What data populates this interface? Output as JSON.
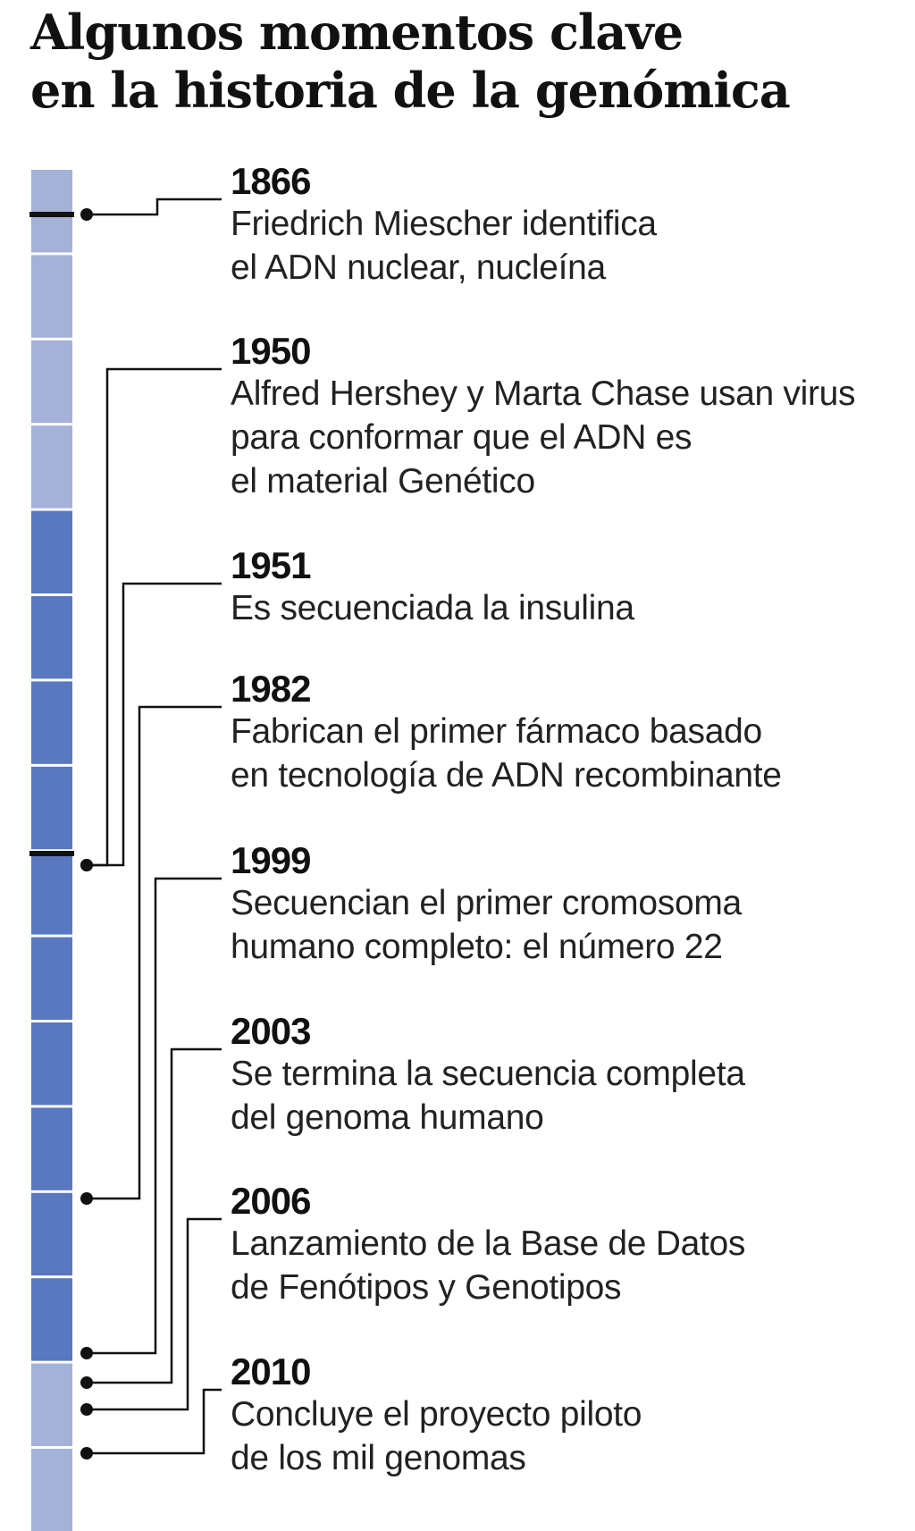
{
  "title": {
    "line1": "Algunos momentos clave",
    "line2": "en la historia de la genómica"
  },
  "colors": {
    "segment_light": "#a4b2d8",
    "segment_dark": "#5a78bf",
    "connector": "#111111",
    "text": "#222222"
  },
  "bar_segments": [
    "light",
    "light",
    "light",
    "light",
    "dark",
    "dark",
    "dark",
    "dark",
    "dark",
    "dark",
    "dark",
    "dark",
    "dark",
    "dark",
    "light",
    "light"
  ],
  "events": [
    {
      "year": "1866",
      "lines": [
        "Friedrich Miescher identifica",
        "el ADN nuclear, nucleína"
      ]
    },
    {
      "year": "1950",
      "lines": [
        "Alfred Hershey y Marta Chase usan virus",
        "para conformar que el ADN es",
        "el material Genético"
      ]
    },
    {
      "year": "1951",
      "lines": [
        "Es secuenciada la insulina"
      ]
    },
    {
      "year": "1982",
      "lines": [
        "Fabrican el primer fármaco basado",
        "en tecnología de ADN recombinante"
      ]
    },
    {
      "year": "1999",
      "lines": [
        "Secuencian el primer cromosoma",
        "humano completo: el número 22"
      ]
    },
    {
      "year": "2003",
      "lines": [
        "Se termina la secuencia completa",
        "del genoma humano"
      ]
    },
    {
      "year": "2006",
      "lines": [
        "Lanzamiento de la Base de Datos",
        "de Fenótipos y Genotipos"
      ]
    },
    {
      "year": "2010",
      "lines": [
        "Concluye el proyecto piloto",
        "de los mil genomas"
      ]
    }
  ]
}
